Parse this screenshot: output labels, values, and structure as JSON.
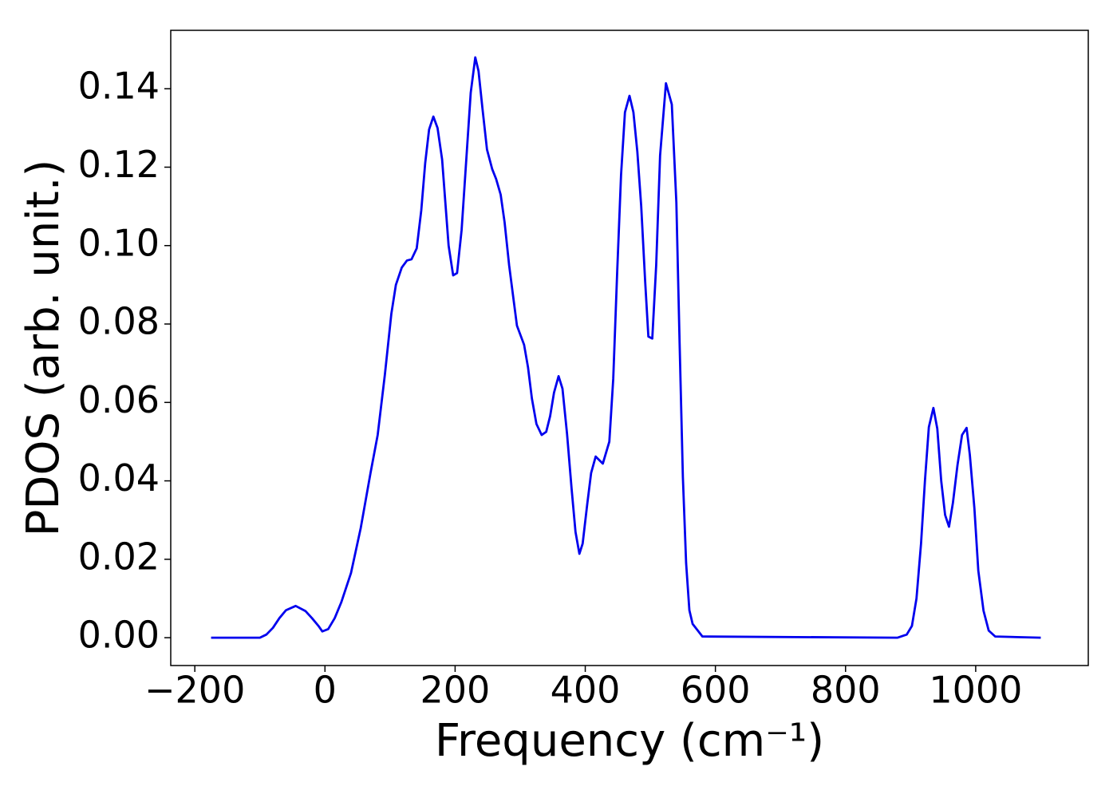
{
  "chart_data": {
    "type": "line",
    "x_label": "Frequency (cm⁻¹)",
    "y_label": "PDOS (arb. unit.)",
    "x": [
      -175,
      -100,
      -90,
      -80,
      -70,
      -60,
      -45,
      -30,
      -20,
      -10,
      -4,
      5,
      15,
      25,
      40,
      55,
      70,
      81,
      92,
      102,
      109,
      118,
      126,
      133,
      141,
      148,
      154,
      160,
      166.6,
      173,
      180,
      190,
      197,
      203,
      210,
      218,
      224,
      231,
      236,
      242,
      249,
      257,
      263,
      270,
      276,
      283,
      290,
      295,
      306,
      312,
      318,
      325,
      333,
      340,
      346,
      352,
      359,
      365,
      372,
      379,
      385,
      391,
      396,
      403,
      409,
      416,
      427,
      437,
      443,
      449,
      455,
      461,
      468,
      474,
      480,
      486,
      492,
      497,
      503,
      509,
      515,
      524,
      533,
      540,
      545,
      550,
      555,
      560,
      565,
      573,
      580,
      880,
      894,
      902,
      909,
      916,
      922,
      928,
      935,
      941,
      947,
      953,
      959,
      965,
      972,
      979,
      986,
      991,
      998,
      1004,
      1012,
      1020,
      1030,
      1100
    ],
    "series": [
      {
        "name": "PDOS",
        "color": "#0000ee",
        "values": [
          0,
          0,
          0.0008,
          0.0025,
          0.005,
          0.007,
          0.0081,
          0.0068,
          0.005,
          0.003,
          0.0016,
          0.0022,
          0.005,
          0.009,
          0.0165,
          0.028,
          0.042,
          0.0517,
          0.067,
          0.0826,
          0.09,
          0.0944,
          0.0962,
          0.0965,
          0.0993,
          0.109,
          0.121,
          0.1296,
          0.1329,
          0.13,
          0.122,
          0.1,
          0.0924,
          0.093,
          0.104,
          0.124,
          0.139,
          0.148,
          0.1445,
          0.135,
          0.1245,
          0.1195,
          0.117,
          0.113,
          0.106,
          0.095,
          0.086,
          0.0796,
          0.0747,
          0.069,
          0.061,
          0.0545,
          0.0517,
          0.0525,
          0.0565,
          0.0625,
          0.0667,
          0.0635,
          0.052,
          0.038,
          0.027,
          0.0214,
          0.024,
          0.034,
          0.042,
          0.0462,
          0.0444,
          0.05,
          0.066,
          0.093,
          0.118,
          0.134,
          0.1382,
          0.134,
          0.124,
          0.11,
          0.091,
          0.0768,
          0.0763,
          0.095,
          0.123,
          0.1414,
          0.136,
          0.111,
          0.075,
          0.041,
          0.019,
          0.007,
          0.0035,
          0.0018,
          0.0003,
          0,
          0.0008,
          0.003,
          0.01,
          0.024,
          0.04,
          0.0537,
          0.0586,
          0.0533,
          0.04,
          0.0313,
          0.0283,
          0.0344,
          0.044,
          0.0517,
          0.0535,
          0.0466,
          0.033,
          0.0171,
          0.0069,
          0.0018,
          0.0003,
          0
        ]
      }
    ],
    "xlim": [
      -237,
      1173
    ],
    "ylim": [
      -0.0071,
      0.1549
    ],
    "xticks": [
      {
        "value": -200,
        "label": "−200"
      },
      0,
      200,
      400,
      600,
      800,
      1000
    ],
    "yticks": [
      {
        "value": 0,
        "label": "0.00"
      },
      {
        "value": 0.02,
        "label": "0.02"
      },
      {
        "value": 0.04,
        "label": "0.04"
      },
      {
        "value": 0.06,
        "label": "0.06"
      },
      {
        "value": 0.08,
        "label": "0.08"
      },
      {
        "value": 0.1,
        "label": "0.10"
      },
      {
        "value": 0.12,
        "label": "0.12"
      },
      {
        "value": 0.14,
        "label": "0.14"
      }
    ],
    "grid": false
  }
}
